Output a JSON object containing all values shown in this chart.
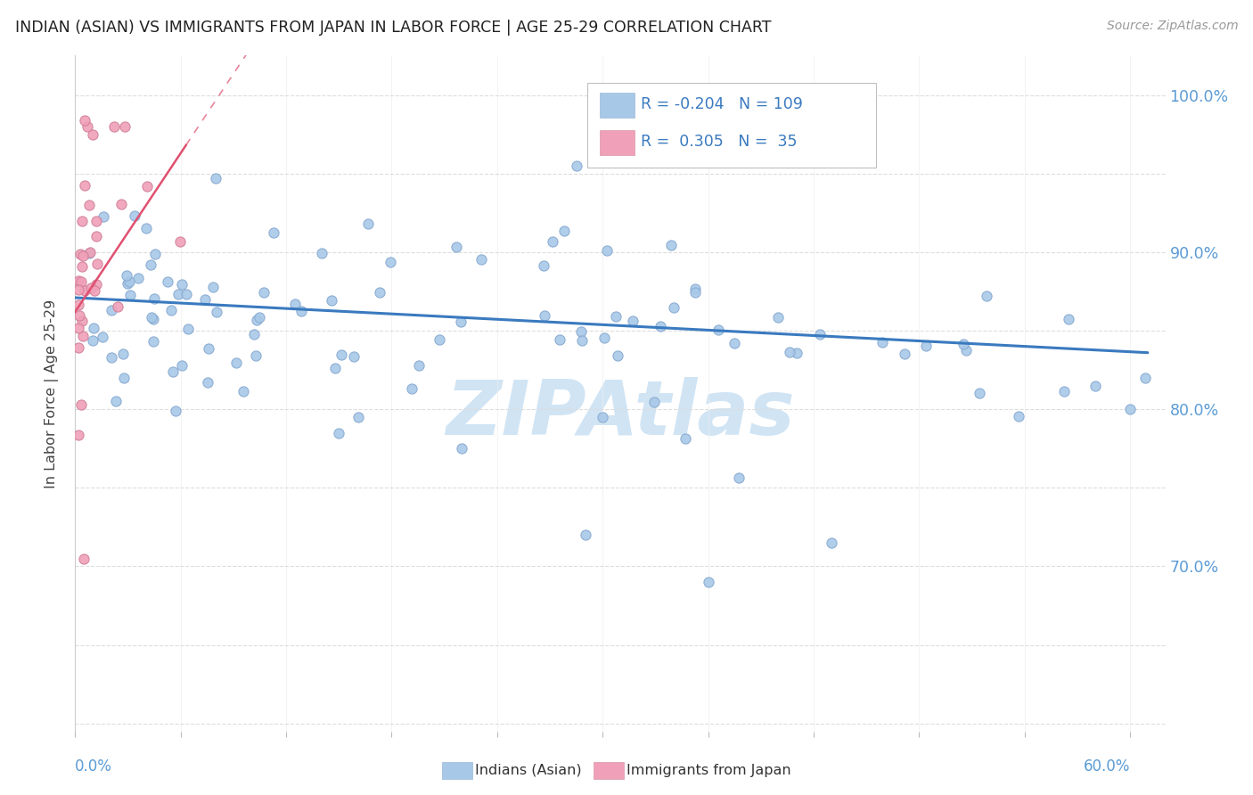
{
  "title": "INDIAN (ASIAN) VS IMMIGRANTS FROM JAPAN IN LABOR FORCE | AGE 25-29 CORRELATION CHART",
  "source": "Source: ZipAtlas.com",
  "ylabel": "In Labor Force | Age 25-29",
  "y_ticks": [
    0.6,
    0.65,
    0.7,
    0.75,
    0.8,
    0.85,
    0.9,
    0.95,
    1.0
  ],
  "y_tick_labels_right": [
    "",
    "",
    "70.0%",
    "",
    "80.0%",
    "",
    "90.0%",
    "",
    "100.0%"
  ],
  "xlim": [
    0.0,
    0.62
  ],
  "ylim": [
    0.595,
    1.025
  ],
  "R_blue": -0.204,
  "N_blue": 109,
  "R_pink": 0.305,
  "N_pink": 35,
  "legend_label_blue": "Indians (Asian)",
  "legend_label_pink": "Immigrants from Japan",
  "scatter_color_blue": "#a8c8e8",
  "scatter_color_pink": "#f0a0b8",
  "scatter_edge_blue": "#88aad0",
  "scatter_edge_pink": "#d08098",
  "line_color_blue": "#3a7abf",
  "line_color_pink": "#e05070",
  "background_color": "#ffffff",
  "title_color": "#222222",
  "axis_label_color": "#5b9bd5",
  "legend_text_color": "#3a7abf",
  "watermark_color": "#d0e4f4",
  "blue_trend_x0": 0.0,
  "blue_trend_y0": 0.871,
  "blue_trend_x1": 0.61,
  "blue_trend_y1": 0.836,
  "pink_trend_x0": 0.0,
  "pink_trend_y0": 0.862,
  "pink_trend_x1": 0.063,
  "pink_trend_y1": 0.968
}
